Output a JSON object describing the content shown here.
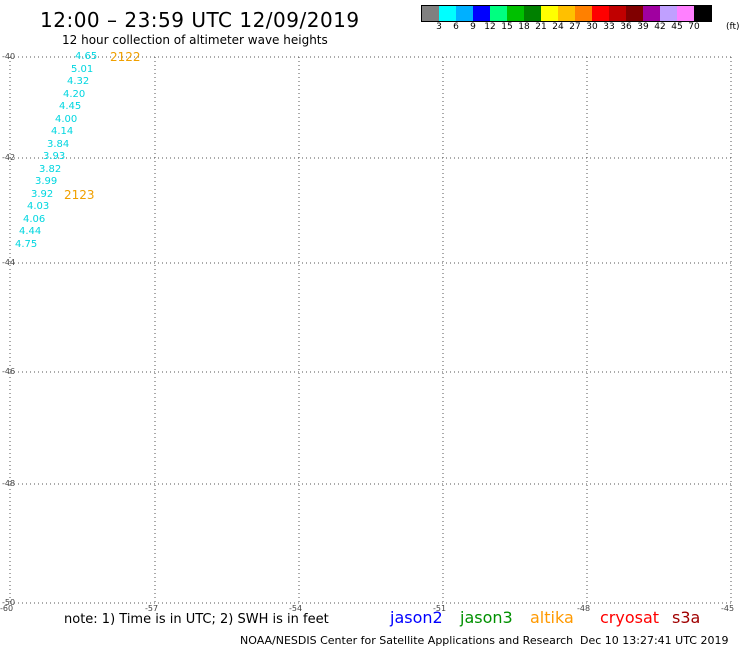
{
  "header": {
    "title": "12:00 – 23:59 UTC 12/09/2019",
    "subtitle": "12 hour collection of altimeter wave heights"
  },
  "legend": {
    "colors": [
      "#808080",
      "#00ffff",
      "#00b0ff",
      "#0000ff",
      "#00ff80",
      "#00c000",
      "#008000",
      "#ffff00",
      "#ffc000",
      "#ff8000",
      "#ff0000",
      "#c00000",
      "#800000",
      "#a000a0",
      "#c0a0ff",
      "#ff80ff",
      "#000000"
    ],
    "labels": [
      "3",
      "6",
      "9",
      "12",
      "15",
      "18",
      "21",
      "24",
      "27",
      "30",
      "33",
      "36",
      "39",
      "42",
      "45",
      "70"
    ],
    "unit": "(ft)"
  },
  "axes": {
    "lat_labels": [
      "-40",
      "-42",
      "-44",
      "-46",
      "-48",
      "-50"
    ],
    "lon_labels": [
      "-60",
      "-57",
      "-54",
      "-51",
      "-48",
      "-45"
    ]
  },
  "track": {
    "satellite": "jason3",
    "color": "#00d6e0",
    "values": [
      "4.65",
      "5.01",
      "4.32",
      "4.20",
      "4.45",
      "4.00",
      "4.14",
      "3.84",
      "3.93",
      "3.82",
      "3.99",
      "3.92",
      "4.03",
      "4.06",
      "4.44",
      "4.75"
    ],
    "times": [
      {
        "label": "2122"
      },
      {
        "label": "2123"
      }
    ]
  },
  "footer": {
    "note": "note:  1) Time is in UTC;  2) SWH is in feet",
    "satellites": [
      {
        "name": "jason2",
        "color": "#0000ff"
      },
      {
        "name": "jason3",
        "color": "#009000"
      },
      {
        "name": "altika",
        "color": "#ff9900"
      },
      {
        "name": "cryosat",
        "color": "#ff0000"
      },
      {
        "name": "s3a",
        "color": "#a00000"
      }
    ],
    "credit": "NOAA/NESDIS Center for Satellite Applications and Research",
    "timestamp": "Dec 10 13:27:41 UTC 2019"
  }
}
